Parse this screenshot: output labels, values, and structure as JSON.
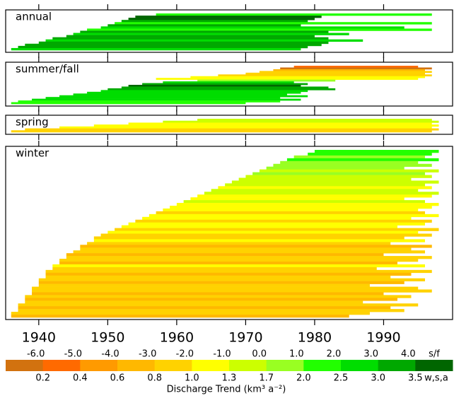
{
  "chart_data": {
    "type": "interval-bars",
    "title": "Discharge Trend (km³ a⁻²)",
    "xlim": [
      1935.2,
      2000
    ],
    "xticks": [
      1940,
      1950,
      1960,
      1970,
      1980,
      1990
    ],
    "colorbar": {
      "colors": [
        "#d2720f",
        "#ff6a00",
        "#ff9a00",
        "#ffb800",
        "#ffd200",
        "#ffff00",
        "#ccff00",
        "#99ff22",
        "#22ff00",
        "#00dd00",
        "#00a800",
        "#006600"
      ],
      "top_label": "s/f",
      "top_ticks": [
        {
          "value": -6,
          "label": "-6.0"
        },
        {
          "value": -5,
          "label": "-5.0"
        },
        {
          "value": -4,
          "label": "-4.0"
        },
        {
          "value": -3,
          "label": "-3.0"
        },
        {
          "value": -2,
          "label": "-2.0"
        },
        {
          "value": -1,
          "label": "-1.0"
        },
        {
          "value": 0,
          "label": "0.0"
        },
        {
          "value": 1,
          "label": "1.0"
        },
        {
          "value": 2,
          "label": "2.0"
        },
        {
          "value": 3,
          "label": "3.0"
        },
        {
          "value": 4,
          "label": "4.0"
        }
      ],
      "bottom_label": "w,s,a",
      "bottom_ticks": [
        0.2,
        0.4,
        0.6,
        0.8,
        {
          "value": 1,
          "label": "1.0"
        },
        1.3,
        1.7,
        {
          "value": 2,
          "label": "2.0"
        },
        2.5,
        {
          "value": 3,
          "label": "3.0"
        },
        3.5
      ]
    },
    "panels": [
      {
        "name": "annual",
        "scale": "bottom",
        "start": [
          1957,
          1954,
          1953,
          1952,
          1951,
          1950,
          1949,
          1947,
          1946,
          1945,
          1944,
          1942,
          1941,
          1940,
          1938,
          1937,
          1936
        ],
        "end": [
          1997,
          1981,
          1980,
          1979,
          1997,
          1978,
          1993,
          1997,
          1982,
          1985,
          1980,
          1982,
          1987,
          1982,
          1981,
          1979,
          1978
        ],
        "values": [
          2.2,
          3.6,
          3.6,
          3.2,
          2.2,
          3.2,
          2.6,
          2.2,
          3.2,
          2.6,
          3.2,
          3.2,
          2.6,
          3.2,
          3.2,
          3.2,
          2.8
        ]
      },
      {
        "name": "summer/fall",
        "scale": "top",
        "start": [
          1977,
          1975,
          1974,
          1972,
          1970,
          1966,
          1962,
          1957,
          1963,
          1958,
          1955,
          1953,
          1952,
          1950,
          1949,
          1947,
          1945,
          1943,
          1941,
          1939,
          1937,
          1936
        ],
        "end": [
          1995,
          1997,
          1996,
          1997,
          1996,
          1997,
          1996,
          1995,
          1983,
          1977,
          1979,
          1978,
          1982,
          1983,
          1979,
          1978,
          1976,
          1979,
          1975,
          1978,
          1975,
          1970
        ],
        "values": [
          -5.5,
          -6.5,
          -3.5,
          -2.5,
          -2.5,
          -2.5,
          -1.5,
          -1.5,
          0.5,
          2.5,
          3.5,
          4.5,
          3.5,
          3.5,
          2.5,
          2.5,
          2.5,
          2.5,
          2.5,
          2.5,
          1.5,
          1.5
        ]
      },
      {
        "name": "spring",
        "scale": "bottom",
        "start": [
          1963,
          1958,
          1953,
          1948,
          1943,
          1938,
          1936
        ],
        "end": [
          1997,
          1998,
          1997,
          1998,
          1997,
          1998,
          1997
        ],
        "values": [
          1.5,
          1.5,
          1.2,
          1.2,
          1.2,
          0.9,
          0.9
        ]
      },
      {
        "name": "winter",
        "scale": "bottom",
        "start": [
          1980,
          1979,
          1977,
          1976,
          1975,
          1974,
          1973,
          1972,
          1971,
          1970,
          1969,
          1968,
          1967,
          1966,
          1965,
          1964,
          1963,
          1962,
          1961,
          1960,
          1959,
          1958,
          1957,
          1956,
          1955,
          1954,
          1953,
          1952,
          1951,
          1950,
          1949,
          1948,
          1948,
          1947,
          1946,
          1946,
          1945,
          1944,
          1944,
          1943,
          1943,
          1942,
          1942,
          1941,
          1941,
          1941,
          1940,
          1940,
          1940,
          1939,
          1939,
          1939,
          1938,
          1938,
          1938,
          1937,
          1937,
          1937,
          1936,
          1936
        ],
        "end": [
          1998,
          1997,
          1996,
          1998,
          1995,
          1997,
          1993,
          1998,
          1996,
          1997,
          1994,
          1998,
          1996,
          1997,
          1995,
          1998,
          1997,
          1993,
          1996,
          1998,
          1997,
          1995,
          1996,
          1998,
          1994,
          1997,
          1996,
          1992,
          1998,
          1995,
          1997,
          1993,
          1996,
          1991,
          1997,
          1994,
          1996,
          1990,
          1997,
          1995,
          1992,
          1996,
          1989,
          1997,
          1994,
          1991,
          1996,
          1993,
          1988,
          1995,
          1997,
          1990,
          1994,
          1992,
          1987,
          1995,
          1991,
          1993,
          1988,
          1985
        ],
        "values": [
          2.2,
          2.1,
          1.9,
          2.2,
          1.8,
          1.9,
          1.8,
          1.6,
          1.9,
          1.5,
          1.6,
          1.4,
          1.5,
          1.2,
          1.4,
          1.5,
          1.2,
          1.1,
          1.4,
          1.1,
          1.2,
          1.1,
          0.9,
          1.1,
          1.2,
          0.9,
          1.1,
          1.0,
          0.9,
          1.1,
          0.9,
          0.9,
          1.1,
          0.9,
          0.7,
          0.9,
          0.9,
          0.7,
          0.9,
          0.9,
          0.7,
          1.1,
          0.9,
          0.9,
          0.7,
          0.9,
          0.9,
          0.7,
          0.9,
          0.9,
          0.9,
          0.7,
          0.9,
          0.7,
          0.9,
          0.9,
          0.7,
          0.9,
          0.9,
          0.7
        ]
      }
    ]
  }
}
